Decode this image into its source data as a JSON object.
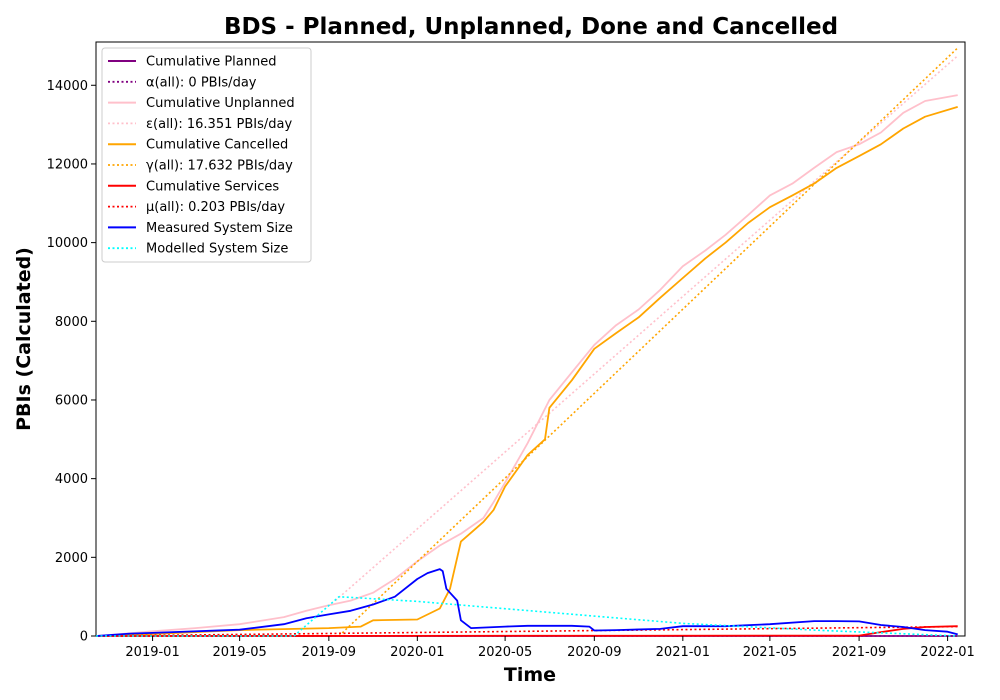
{
  "chart_data": {
    "type": "line",
    "title": "BDS - Planned, Unplanned, Done  and Cancelled",
    "xlabel": "Time",
    "ylabel": "PBIs (Calculated)",
    "xlim": [
      "2018-10-15",
      "2022-01-25"
    ],
    "ylim": [
      0,
      15100
    ],
    "x_ticks": [
      "2019-01",
      "2019-05",
      "2019-09",
      "2020-01",
      "2020-05",
      "2020-09",
      "2021-01",
      "2021-05",
      "2021-09",
      "2022-01"
    ],
    "y_ticks": [
      0,
      2000,
      4000,
      6000,
      8000,
      10000,
      12000,
      14000
    ],
    "grid": false,
    "legend_position": "top-left",
    "series": [
      {
        "name": "Cumulative Planned",
        "color": "#800080",
        "style": "solid",
        "points": [
          [
            "2018-10-15",
            0
          ],
          [
            "2022-01-15",
            0
          ]
        ]
      },
      {
        "name": "α(all): 0 PBIs/day",
        "color": "#800080",
        "style": "dotted",
        "points": [
          [
            "2018-10-15",
            0
          ],
          [
            "2022-01-15",
            0
          ]
        ]
      },
      {
        "name": "Cumulative Unplanned",
        "color": "#ffc0cb",
        "style": "solid",
        "points": [
          [
            "2018-10-15",
            0
          ],
          [
            "2018-11-01",
            20
          ],
          [
            "2019-01-01",
            120
          ],
          [
            "2019-03-01",
            200
          ],
          [
            "2019-05-01",
            300
          ],
          [
            "2019-07-01",
            480
          ],
          [
            "2019-08-01",
            640
          ],
          [
            "2019-09-01",
            780
          ],
          [
            "2019-10-01",
            900
          ],
          [
            "2019-11-01",
            1100
          ],
          [
            "2019-12-01",
            1450
          ],
          [
            "2020-01-01",
            1900
          ],
          [
            "2020-02-01",
            2300
          ],
          [
            "2020-03-01",
            2600
          ],
          [
            "2020-04-01",
            3000
          ],
          [
            "2020-04-15",
            3400
          ],
          [
            "2020-05-01",
            3900
          ],
          [
            "2020-06-01",
            4900
          ],
          [
            "2020-07-01",
            6000
          ],
          [
            "2020-08-01",
            6700
          ],
          [
            "2020-09-01",
            7400
          ],
          [
            "2020-10-01",
            7900
          ],
          [
            "2020-11-01",
            8300
          ],
          [
            "2020-12-01",
            8800
          ],
          [
            "2021-01-01",
            9400
          ],
          [
            "2021-02-01",
            9800
          ],
          [
            "2021-03-01",
            10200
          ],
          [
            "2021-04-01",
            10700
          ],
          [
            "2021-05-01",
            11200
          ],
          [
            "2021-06-01",
            11500
          ],
          [
            "2021-07-01",
            11900
          ],
          [
            "2021-08-01",
            12300
          ],
          [
            "2021-09-01",
            12500
          ],
          [
            "2021-10-01",
            12800
          ],
          [
            "2021-11-01",
            13300
          ],
          [
            "2021-12-01",
            13600
          ],
          [
            "2022-01-15",
            13750
          ]
        ]
      },
      {
        "name": "ε(all): 16.351 PBIs/day",
        "color": "#ffc0cb",
        "style": "dotted",
        "points": [
          [
            "2019-09-10",
            900
          ],
          [
            "2022-01-15",
            14750
          ]
        ]
      },
      {
        "name": "Cumulative Cancelled",
        "color": "#ffa500",
        "style": "solid",
        "points": [
          [
            "2018-10-15",
            0
          ],
          [
            "2019-01-01",
            50
          ],
          [
            "2019-05-01",
            150
          ],
          [
            "2019-09-01",
            200
          ],
          [
            "2019-10-15",
            240
          ],
          [
            "2019-11-01",
            400
          ],
          [
            "2020-01-01",
            420
          ],
          [
            "2020-02-01",
            700
          ],
          [
            "2020-02-15",
            1200
          ],
          [
            "2020-03-01",
            2400
          ],
          [
            "2020-04-01",
            2900
          ],
          [
            "2020-04-15",
            3200
          ],
          [
            "2020-05-01",
            3800
          ],
          [
            "2020-06-01",
            4600
          ],
          [
            "2020-06-25",
            5000
          ],
          [
            "2020-07-01",
            5800
          ],
          [
            "2020-08-01",
            6500
          ],
          [
            "2020-09-01",
            7300
          ],
          [
            "2020-10-01",
            7700
          ],
          [
            "2020-11-01",
            8100
          ],
          [
            "2020-12-01",
            8600
          ],
          [
            "2021-01-01",
            9100
          ],
          [
            "2021-02-01",
            9600
          ],
          [
            "2021-03-01",
            10000
          ],
          [
            "2021-04-01",
            10500
          ],
          [
            "2021-05-01",
            10900
          ],
          [
            "2021-06-01",
            11200
          ],
          [
            "2021-07-01",
            11500
          ],
          [
            "2021-08-01",
            11900
          ],
          [
            "2021-09-01",
            12200
          ],
          [
            "2021-10-01",
            12500
          ],
          [
            "2021-11-01",
            12900
          ],
          [
            "2021-12-01",
            13200
          ],
          [
            "2022-01-15",
            13450
          ]
        ]
      },
      {
        "name": "γ(all): 17.632 PBIs/day",
        "color": "#ffa500",
        "style": "dotted",
        "points": [
          [
            "2019-09-15",
            0
          ],
          [
            "2022-01-15",
            14950
          ]
        ]
      },
      {
        "name": "Cumulative Services",
        "color": "#ff0000",
        "style": "solid",
        "points": [
          [
            "2018-10-15",
            0
          ],
          [
            "2021-09-01",
            10
          ],
          [
            "2021-10-01",
            100
          ],
          [
            "2021-11-01",
            180
          ],
          [
            "2021-12-01",
            230
          ],
          [
            "2022-01-15",
            250
          ]
        ]
      },
      {
        "name": "μ(all): 0.203 PBIs/day",
        "color": "#ff0000",
        "style": "dotted",
        "points": [
          [
            "2018-10-15",
            0
          ],
          [
            "2022-01-15",
            240
          ]
        ]
      },
      {
        "name": "Measured System Size",
        "color": "#0000ff",
        "style": "solid",
        "points": [
          [
            "2018-10-15",
            0
          ],
          [
            "2018-12-01",
            60
          ],
          [
            "2019-01-01",
            80
          ],
          [
            "2019-05-01",
            160
          ],
          [
            "2019-07-01",
            300
          ],
          [
            "2019-08-01",
            450
          ],
          [
            "2019-09-01",
            550
          ],
          [
            "2019-10-01",
            640
          ],
          [
            "2019-11-01",
            800
          ],
          [
            "2019-12-01",
            1000
          ],
          [
            "2020-01-01",
            1450
          ],
          [
            "2020-01-15",
            1600
          ],
          [
            "2020-02-01",
            1700
          ],
          [
            "2020-02-05",
            1650
          ],
          [
            "2020-02-10",
            1200
          ],
          [
            "2020-02-25",
            900
          ],
          [
            "2020-03-01",
            400
          ],
          [
            "2020-03-15",
            200
          ],
          [
            "2020-05-01",
            240
          ],
          [
            "2020-06-01",
            260
          ],
          [
            "2020-08-01",
            260
          ],
          [
            "2020-08-25",
            240
          ],
          [
            "2020-09-01",
            140
          ],
          [
            "2020-10-01",
            150
          ],
          [
            "2020-12-01",
            180
          ],
          [
            "2021-01-01",
            250
          ],
          [
            "2021-03-01",
            250
          ],
          [
            "2021-05-01",
            300
          ],
          [
            "2021-07-01",
            380
          ],
          [
            "2021-08-01",
            380
          ],
          [
            "2021-09-01",
            370
          ],
          [
            "2021-10-01",
            280
          ],
          [
            "2021-11-01",
            230
          ],
          [
            "2021-12-01",
            150
          ],
          [
            "2022-01-01",
            110
          ],
          [
            "2022-01-15",
            40
          ]
        ]
      },
      {
        "name": "Modelled System Size",
        "color": "#00ffff",
        "style": "dotted",
        "points": [
          [
            "2018-10-15",
            0
          ],
          [
            "2019-07-15",
            0
          ],
          [
            "2019-09-15",
            1000
          ],
          [
            "2020-01-01",
            880
          ],
          [
            "2020-07-01",
            600
          ],
          [
            "2021-01-01",
            320
          ],
          [
            "2021-07-01",
            150
          ],
          [
            "2022-01-15",
            0
          ]
        ]
      }
    ]
  }
}
